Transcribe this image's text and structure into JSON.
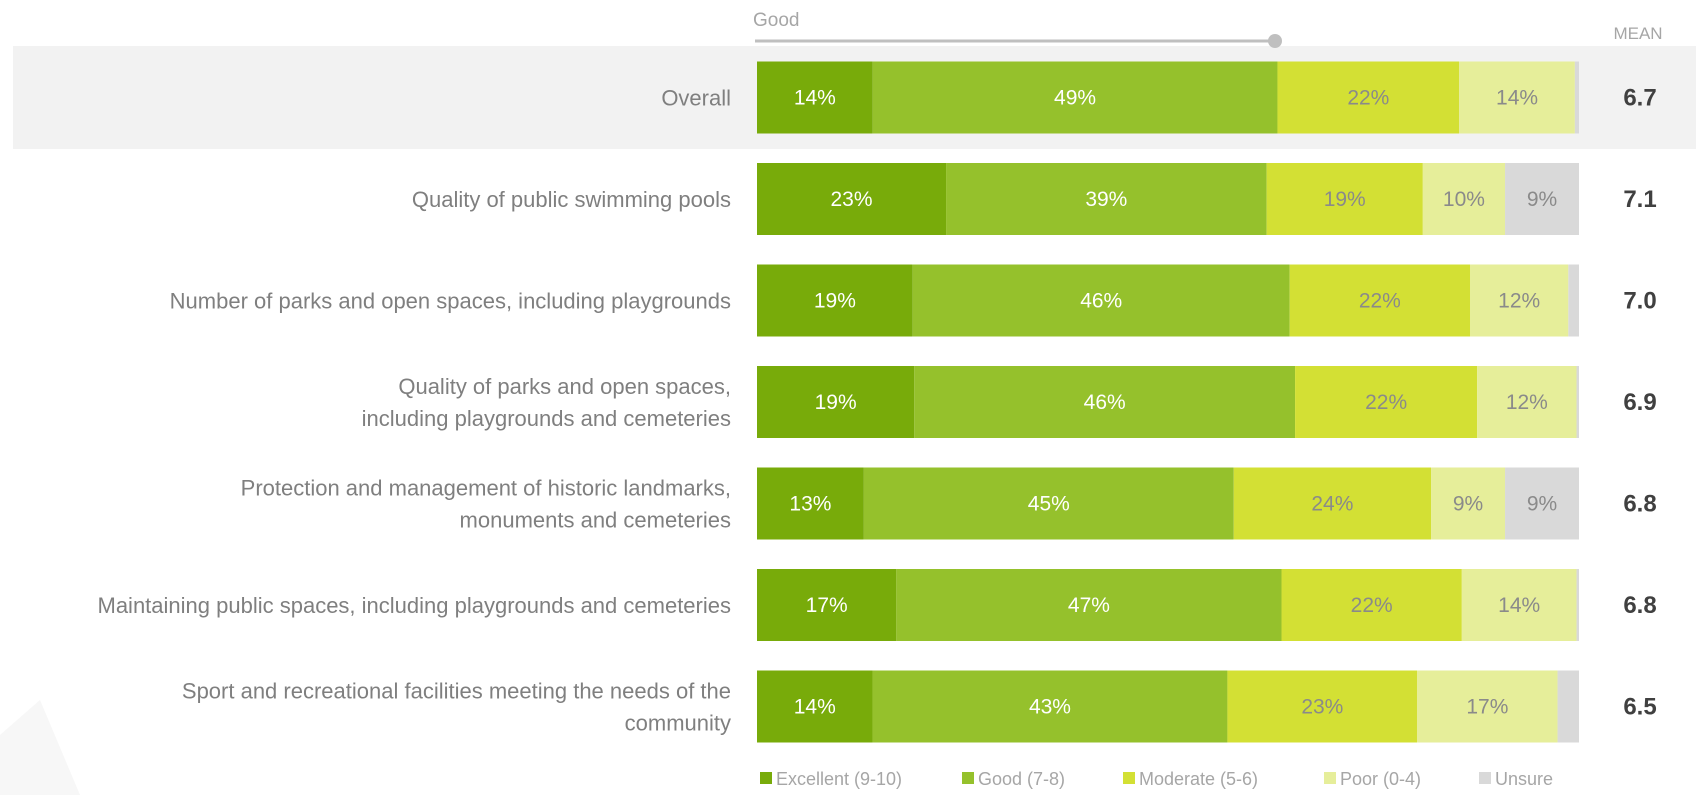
{
  "chart_data": {
    "type": "bar",
    "orientation": "horizontal",
    "stacked": true,
    "scale_label": "Good",
    "mean_header": "MEAN",
    "categories": [
      {
        "label": [
          "Overall"
        ],
        "highlight": true
      },
      {
        "label": [
          "Quality of public swimming pools"
        ]
      },
      {
        "label": [
          "Number of parks and open spaces, including playgrounds"
        ]
      },
      {
        "label": [
          "Quality of parks and open spaces,",
          "including playgrounds and cemeteries"
        ]
      },
      {
        "label": [
          "Protection and management of historic landmarks,",
          "monuments and cemeteries"
        ]
      },
      {
        "label": [
          "Maintaining public spaces, including playgrounds and cemeteries"
        ]
      },
      {
        "label": [
          "Sport and recreational facilities meeting the needs of the",
          "community"
        ]
      }
    ],
    "series": [
      {
        "name": "Excellent (9-10)",
        "color": "#78ab0a",
        "values": [
          14,
          23,
          19,
          19,
          13,
          17,
          14
        ],
        "text": "light"
      },
      {
        "name": "Good (7-8)",
        "color": "#95c12c",
        "values": [
          49,
          39,
          46,
          46,
          45,
          47,
          43
        ],
        "text": "light"
      },
      {
        "name": "Moderate (5-6)",
        "color": "#d3e034",
        "values": [
          22,
          19,
          22,
          22,
          24,
          22,
          23
        ],
        "text": "dark"
      },
      {
        "name": "Poor (0-4)",
        "color": "#e6ee9a",
        "values": [
          14,
          10,
          12,
          12,
          9,
          14,
          17
        ],
        "text": "dark"
      },
      {
        "name": "Unsure",
        "color": "#d9d9d9",
        "values": [
          0.5,
          9,
          1.3,
          0.3,
          9,
          0.3,
          2.6
        ],
        "text": "dark",
        "labels": [
          "",
          "9%",
          "",
          "",
          "9%",
          "",
          ""
        ]
      }
    ],
    "means": [
      "6.7",
      "7.1",
      "7.0",
      "6.9",
      "6.8",
      "6.8",
      "6.5"
    ]
  }
}
